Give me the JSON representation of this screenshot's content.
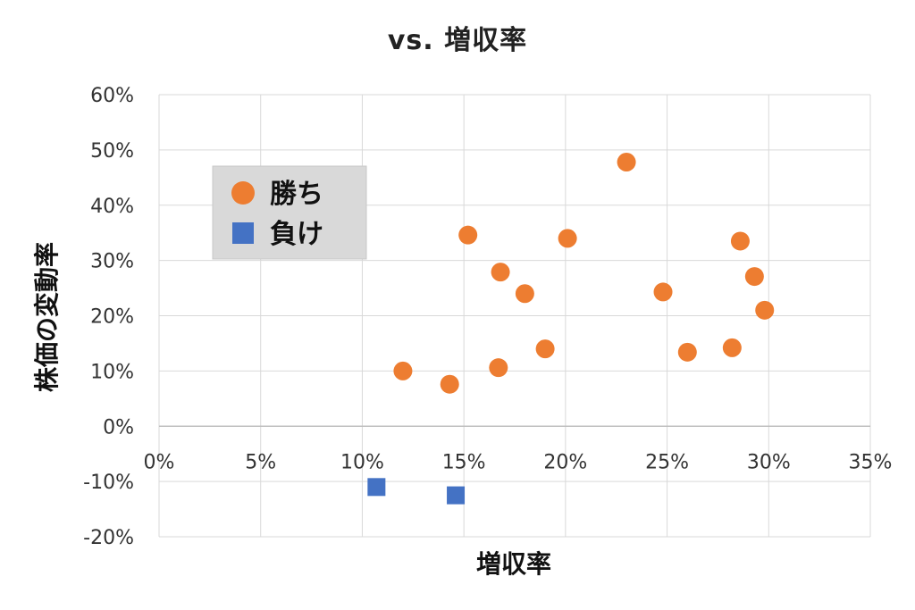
{
  "chart_data": {
    "type": "scatter",
    "title": "vs. 増収率",
    "xlabel": "増収率",
    "ylabel": "株価の変動率",
    "xlim": [
      0,
      35
    ],
    "ylim": [
      -20,
      60
    ],
    "x_ticks": [
      "0%",
      "5%",
      "10%",
      "15%",
      "20%",
      "25%",
      "30%",
      "35%"
    ],
    "y_ticks": [
      "60%",
      "50%",
      "40%",
      "30%",
      "20%",
      "10%",
      "0%",
      "-10%",
      "-20%"
    ],
    "grid": true,
    "legend_position": "top-left",
    "series": [
      {
        "name": "勝ち",
        "marker": "circle",
        "color": "#ED7D31",
        "points": [
          [
            12.0,
            10
          ],
          [
            14.3,
            7.6
          ],
          [
            15.2,
            34.6
          ],
          [
            16.7,
            10.6
          ],
          [
            16.8,
            27.9
          ],
          [
            18.0,
            24.0
          ],
          [
            19.0,
            14.0
          ],
          [
            20.1,
            34.0
          ],
          [
            23.0,
            47.8
          ],
          [
            24.8,
            24.3
          ],
          [
            26.0,
            13.4
          ],
          [
            28.2,
            14.2
          ],
          [
            28.6,
            33.5
          ],
          [
            29.3,
            27.1
          ],
          [
            29.8,
            21.0
          ]
        ]
      },
      {
        "name": "負け",
        "marker": "square",
        "color": "#4472C4",
        "points": [
          [
            10.7,
            -11.0
          ],
          [
            14.6,
            -12.5
          ]
        ]
      }
    ]
  }
}
